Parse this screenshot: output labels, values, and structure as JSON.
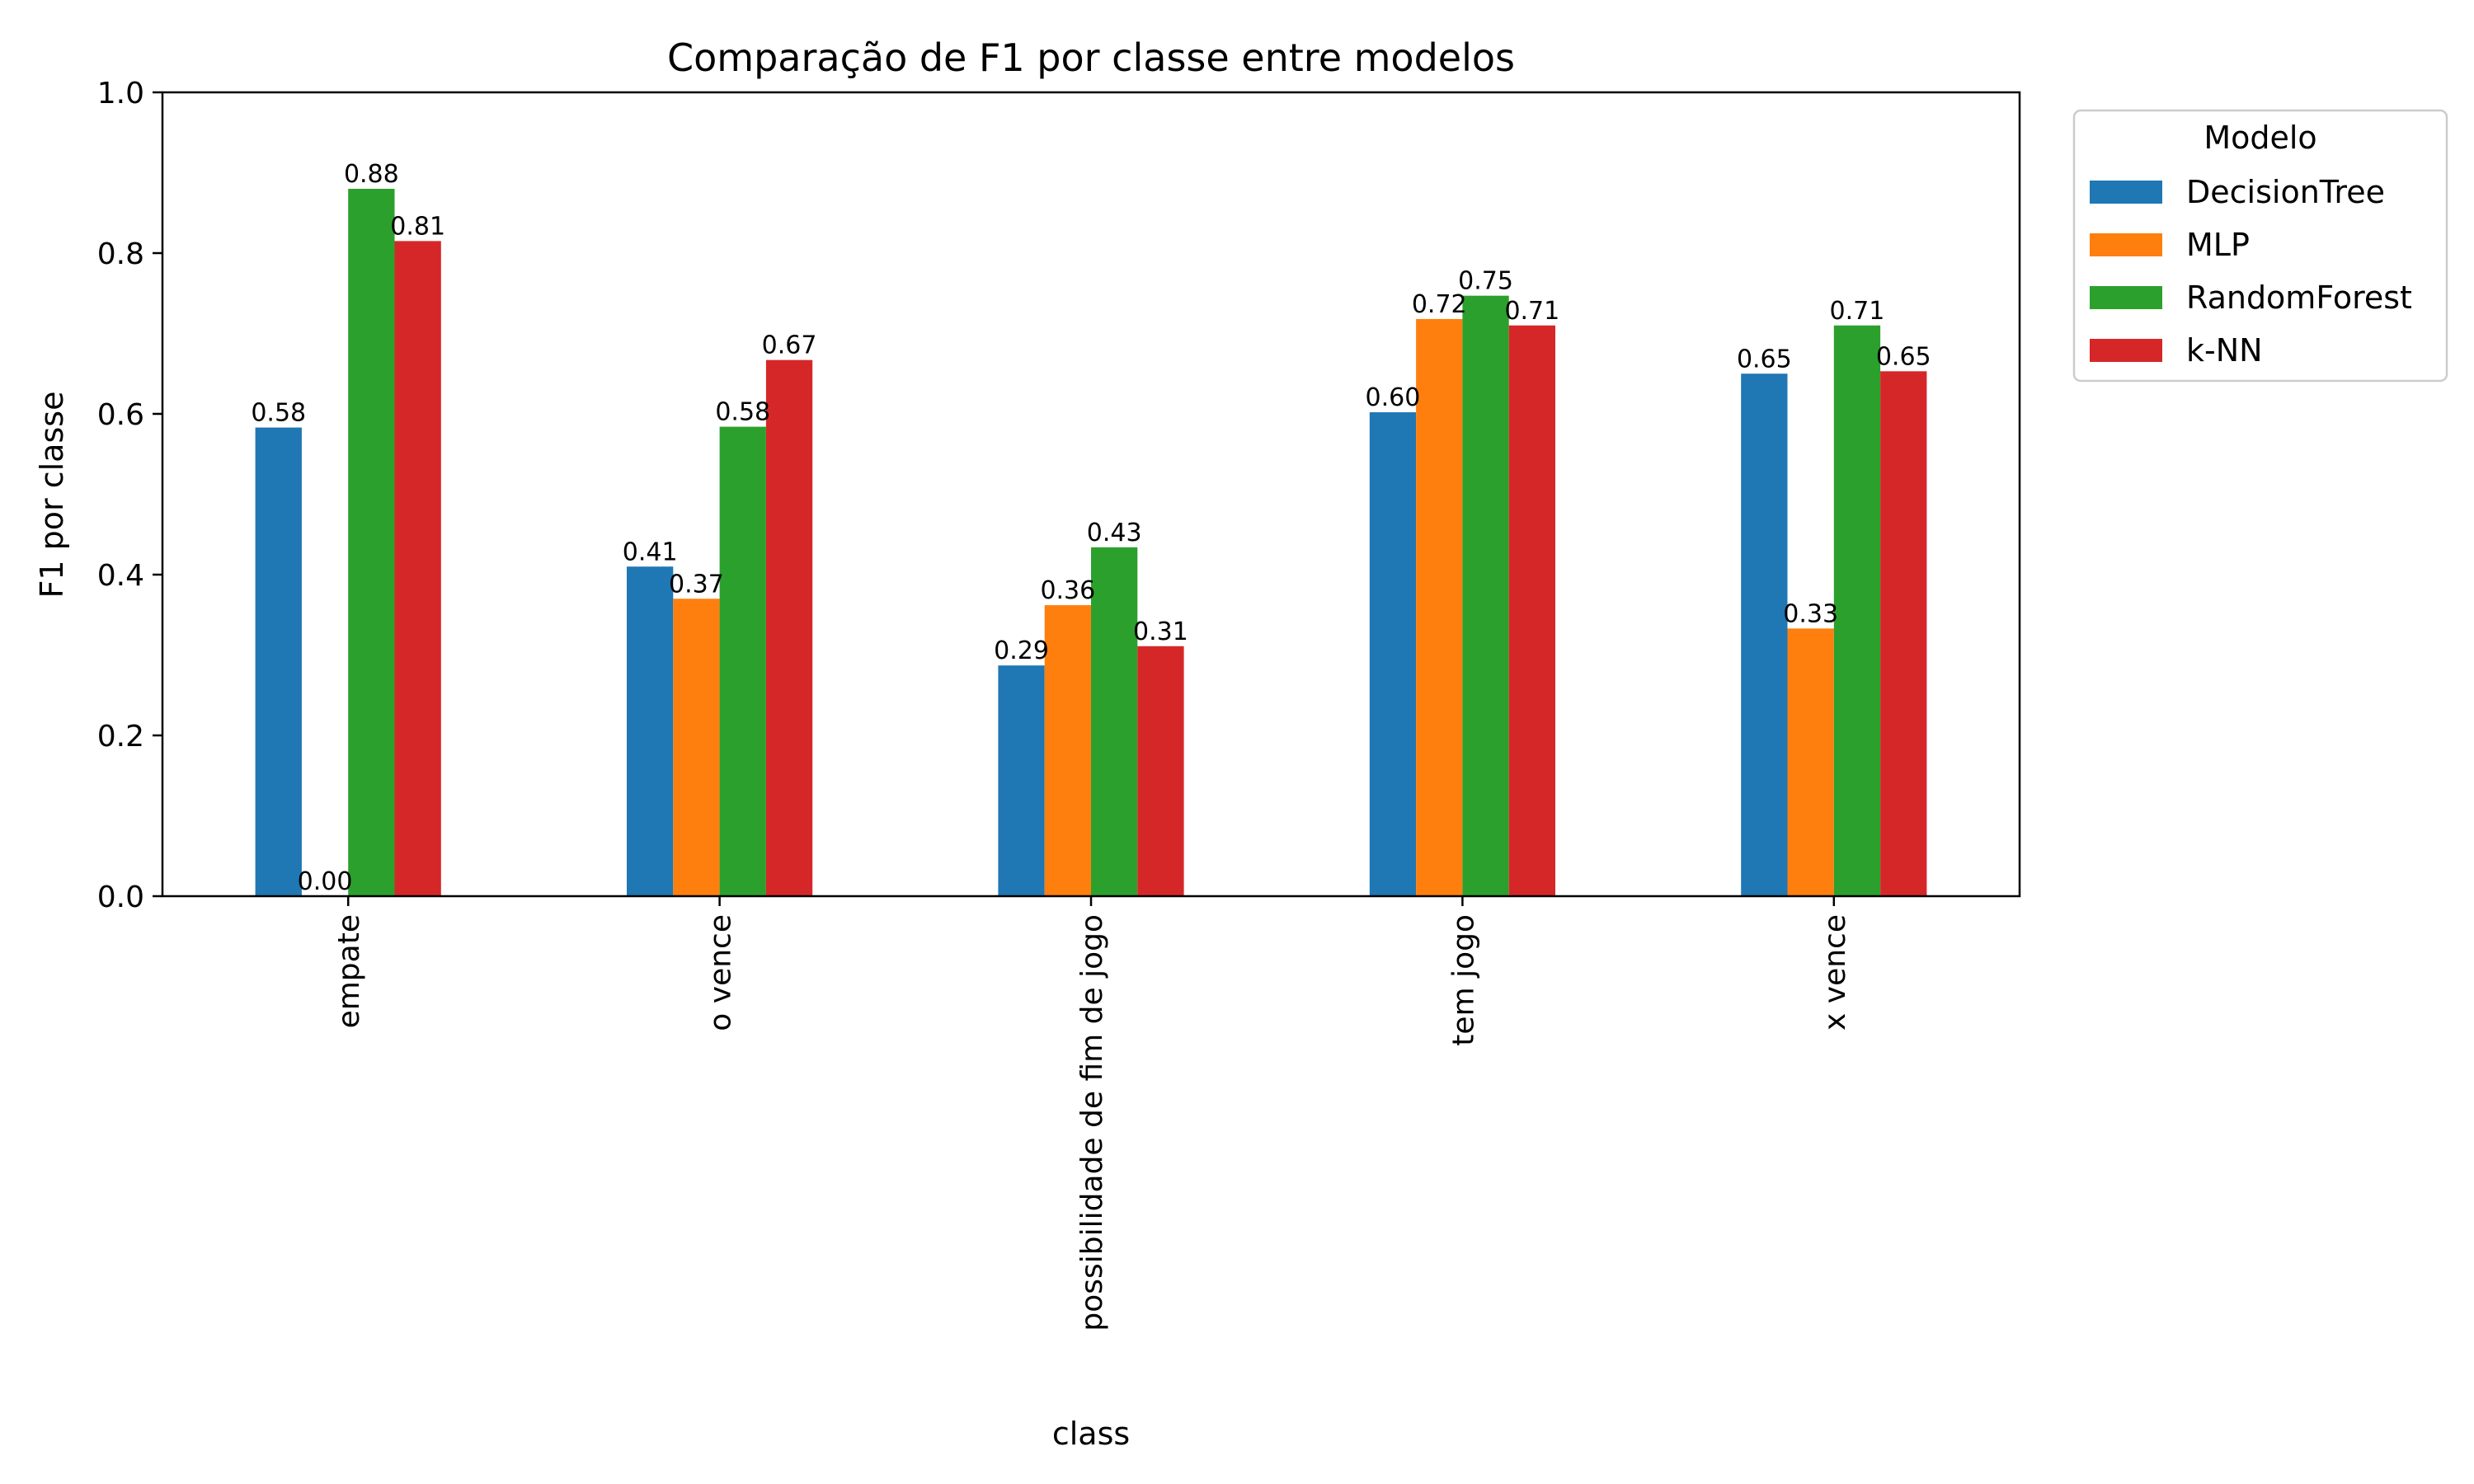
{
  "chart_data": {
    "type": "bar",
    "title": "Comparação de F1 por classe entre modelos",
    "xlabel": "class",
    "ylabel": "F1 por classe",
    "ylim": [
      0,
      1.0
    ],
    "yticks": [
      "0.0",
      "0.2",
      "0.4",
      "0.6",
      "0.8",
      "1.0"
    ],
    "categories": [
      "empate",
      "o vence",
      "possibilidade de fim de jogo",
      "tem jogo",
      "x vence"
    ],
    "series": [
      {
        "name": "DecisionTree",
        "color": "#1f77b4",
        "values": [
          0.583,
          0.41,
          0.287,
          0.602,
          0.65
        ],
        "labels": [
          "0.58",
          "0.41",
          "0.29",
          "0.60",
          "0.65"
        ]
      },
      {
        "name": "MLP",
        "color": "#ff7f0e",
        "values": [
          0.0,
          0.37,
          0.362,
          0.718,
          0.333
        ],
        "labels": [
          "0.00",
          "0.37",
          "0.36",
          "0.72",
          "0.33"
        ]
      },
      {
        "name": "RandomForest",
        "color": "#2ca02c",
        "values": [
          0.88,
          0.584,
          0.434,
          0.747,
          0.71
        ],
        "labels": [
          "0.88",
          "0.58",
          "0.43",
          "0.75",
          "0.71"
        ]
      },
      {
        "name": "k-NN",
        "color": "#d62728",
        "values": [
          0.815,
          0.667,
          0.311,
          0.71,
          0.653
        ],
        "labels": [
          "0.81",
          "0.67",
          "0.31",
          "0.71",
          "0.65"
        ]
      }
    ],
    "legend": {
      "title": "Modelo",
      "position": "outside-top-right"
    },
    "grid": false
  }
}
